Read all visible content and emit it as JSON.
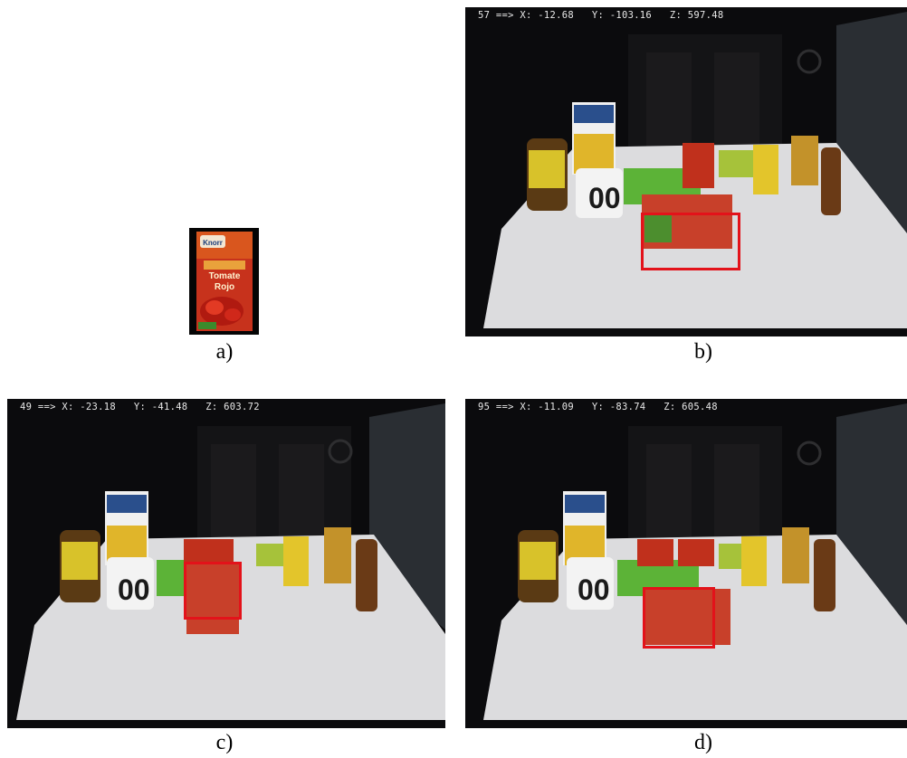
{
  "captions": {
    "a": "a)",
    "b": "b)",
    "c": "c)",
    "d": "d)"
  },
  "template": {
    "brand": "Knorr",
    "product_lines": [
      "Tomate",
      "Rojo"
    ]
  },
  "panels": {
    "b": {
      "frame_no": "57",
      "x": "-12.68",
      "y": "-103.16",
      "z": "597.48"
    },
    "c": {
      "frame_no": "49",
      "x": "-23.18",
      "y": "-41.48",
      "z": "603.72"
    },
    "d": {
      "frame_no": "95",
      "x": "-11.09",
      "y": "-83.74",
      "z": "605.48"
    }
  },
  "colors": {
    "detection_box": "#e3121a",
    "wall": "#0e0e10",
    "table": "#e2e2e4"
  }
}
